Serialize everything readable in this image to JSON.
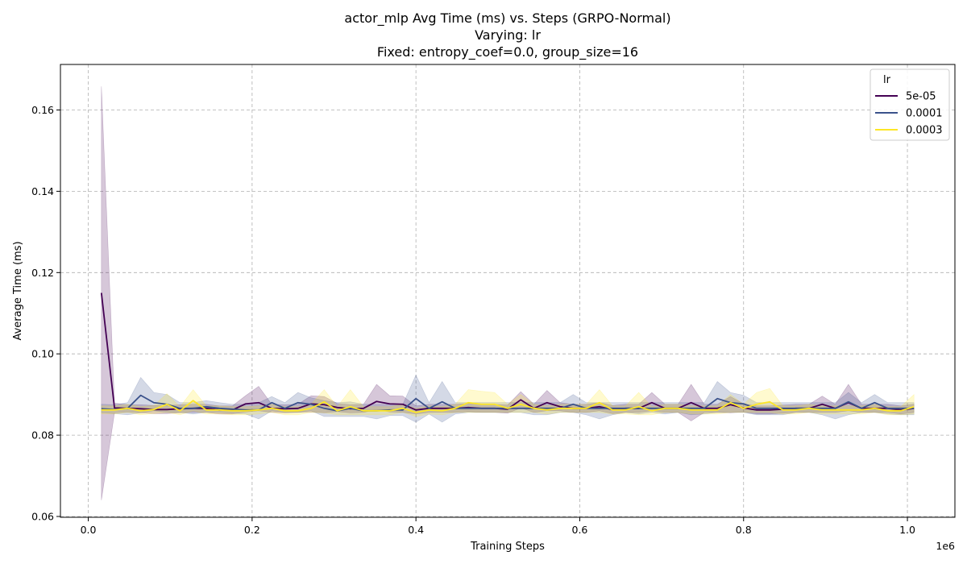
{
  "chart_data": {
    "type": "line",
    "title_lines": [
      "actor_mlp Avg Time (ms) vs. Steps (GRPO-Normal)",
      "Varying: lr",
      "Fixed: entropy_coef=0.0, group_size=16"
    ],
    "xlabel": "Training Steps",
    "ylabel": "Average Time (ms)",
    "x_multiplier_label": "1e6",
    "xlim": [
      -0.034,
      1.058
    ],
    "ylim": [
      0.0598,
      0.1712
    ],
    "xticks": [
      {
        "v": 0.0,
        "label": "0.0"
      },
      {
        "v": 0.2,
        "label": "0.2"
      },
      {
        "v": 0.4,
        "label": "0.4"
      },
      {
        "v": 0.6,
        "label": "0.6"
      },
      {
        "v": 0.8,
        "label": "0.8"
      },
      {
        "v": 1.0,
        "label": "1.0"
      }
    ],
    "yticks": [
      {
        "v": 0.06,
        "label": "0.06"
      },
      {
        "v": 0.08,
        "label": "0.08"
      },
      {
        "v": 0.1,
        "label": "0.10"
      },
      {
        "v": 0.12,
        "label": "0.12"
      },
      {
        "v": 0.14,
        "label": "0.14"
      },
      {
        "v": 0.16,
        "label": "0.16"
      }
    ],
    "grid": true,
    "legend": {
      "title": "lr",
      "placement": "top-right"
    },
    "series": [
      {
        "name": "5e-05",
        "color": "#440154",
        "x": [
          0.016,
          0.032,
          0.048,
          0.064,
          0.08,
          0.096,
          0.112,
          0.128,
          0.144,
          0.16,
          0.176,
          0.192,
          0.208,
          0.224,
          0.24,
          0.256,
          0.272,
          0.288,
          0.304,
          0.32,
          0.336,
          0.352,
          0.368,
          0.384,
          0.4,
          0.416,
          0.432,
          0.448,
          0.464,
          0.48,
          0.496,
          0.512,
          0.528,
          0.544,
          0.56,
          0.576,
          0.592,
          0.608,
          0.624,
          0.64,
          0.656,
          0.672,
          0.688,
          0.704,
          0.72,
          0.736,
          0.752,
          0.768,
          0.784,
          0.8,
          0.816,
          0.832,
          0.848,
          0.864,
          0.88,
          0.896,
          0.912,
          0.928,
          0.944,
          0.96,
          0.976,
          0.992,
          1.008
        ],
        "y": [
          0.115,
          0.0867,
          0.0866,
          0.0865,
          0.0863,
          0.0863,
          0.0865,
          0.0866,
          0.0866,
          0.0862,
          0.0862,
          0.0877,
          0.088,
          0.0866,
          0.0865,
          0.0866,
          0.0877,
          0.0875,
          0.0868,
          0.0865,
          0.0866,
          0.0883,
          0.0877,
          0.0876,
          0.0862,
          0.0866,
          0.0866,
          0.0866,
          0.0868,
          0.0866,
          0.0866,
          0.0864,
          0.0887,
          0.0866,
          0.088,
          0.087,
          0.0866,
          0.0866,
          0.087,
          0.0863,
          0.0866,
          0.0866,
          0.088,
          0.0866,
          0.0866,
          0.088,
          0.0866,
          0.0866,
          0.0875,
          0.0867,
          0.0862,
          0.0862,
          0.0864,
          0.0866,
          0.0866,
          0.0876,
          0.0866,
          0.088,
          0.0866,
          0.0866,
          0.0866,
          0.0862,
          0.0866
        ],
        "lower": [
          0.064,
          0.0855,
          0.0857,
          0.0855,
          0.0853,
          0.0853,
          0.0855,
          0.0856,
          0.0856,
          0.0852,
          0.0852,
          0.0857,
          0.086,
          0.0856,
          0.0855,
          0.0856,
          0.0857,
          0.0855,
          0.0858,
          0.0855,
          0.0856,
          0.0863,
          0.0857,
          0.0856,
          0.0852,
          0.0856,
          0.0856,
          0.0856,
          0.0858,
          0.0856,
          0.0856,
          0.0854,
          0.0867,
          0.0856,
          0.086,
          0.086,
          0.0856,
          0.0856,
          0.086,
          0.0853,
          0.0856,
          0.0856,
          0.086,
          0.0856,
          0.0856,
          0.0835,
          0.0856,
          0.0856,
          0.0855,
          0.0857,
          0.0852,
          0.0852,
          0.0854,
          0.0856,
          0.0856,
          0.0856,
          0.0856,
          0.086,
          0.0856,
          0.0856,
          0.0856,
          0.0852,
          0.0856
        ],
        "upper": [
          0.1658,
          0.0879,
          0.0875,
          0.0875,
          0.0873,
          0.0873,
          0.0875,
          0.0876,
          0.0876,
          0.0872,
          0.0872,
          0.0897,
          0.092,
          0.0876,
          0.0875,
          0.0876,
          0.0897,
          0.0895,
          0.0878,
          0.0875,
          0.0876,
          0.0925,
          0.0897,
          0.0896,
          0.0872,
          0.0876,
          0.0876,
          0.0876,
          0.0878,
          0.0876,
          0.0876,
          0.0874,
          0.0907,
          0.0876,
          0.091,
          0.088,
          0.0876,
          0.0876,
          0.088,
          0.0873,
          0.0876,
          0.0876,
          0.0905,
          0.0876,
          0.0876,
          0.0925,
          0.0876,
          0.0876,
          0.0895,
          0.0877,
          0.0872,
          0.0872,
          0.0874,
          0.0876,
          0.0876,
          0.0896,
          0.0876,
          0.0925,
          0.0876,
          0.0876,
          0.0876,
          0.0872,
          0.0876
        ]
      },
      {
        "name": "0.0001",
        "color": "#3b528b",
        "x": [
          0.016,
          0.032,
          0.048,
          0.064,
          0.08,
          0.096,
          0.112,
          0.128,
          0.144,
          0.16,
          0.176,
          0.192,
          0.208,
          0.224,
          0.24,
          0.256,
          0.272,
          0.288,
          0.304,
          0.32,
          0.336,
          0.352,
          0.368,
          0.384,
          0.4,
          0.416,
          0.432,
          0.448,
          0.464,
          0.48,
          0.496,
          0.512,
          0.528,
          0.544,
          0.56,
          0.576,
          0.592,
          0.608,
          0.624,
          0.64,
          0.656,
          0.672,
          0.688,
          0.704,
          0.72,
          0.736,
          0.752,
          0.768,
          0.784,
          0.8,
          0.816,
          0.832,
          0.848,
          0.864,
          0.88,
          0.896,
          0.912,
          0.928,
          0.944,
          0.96,
          0.976,
          0.992,
          1.008
        ],
        "y": [
          0.0865,
          0.0863,
          0.0866,
          0.0898,
          0.088,
          0.0876,
          0.0866,
          0.0866,
          0.087,
          0.0866,
          0.0864,
          0.0862,
          0.0862,
          0.088,
          0.0866,
          0.088,
          0.0876,
          0.0866,
          0.086,
          0.0866,
          0.086,
          0.086,
          0.0862,
          0.0862,
          0.089,
          0.0866,
          0.0882,
          0.0866,
          0.0866,
          0.0866,
          0.0866,
          0.0866,
          0.0866,
          0.0866,
          0.0866,
          0.0866,
          0.0876,
          0.0866,
          0.0866,
          0.0866,
          0.0866,
          0.0866,
          0.0866,
          0.0866,
          0.0866,
          0.0866,
          0.0866,
          0.089,
          0.088,
          0.0877,
          0.0866,
          0.0866,
          0.0866,
          0.0866,
          0.0866,
          0.0866,
          0.0866,
          0.0882,
          0.0866,
          0.088,
          0.0866,
          0.0866,
          0.0866
        ],
        "lower": [
          0.0855,
          0.0853,
          0.085,
          0.0855,
          0.086,
          0.0856,
          0.0856,
          0.0852,
          0.0856,
          0.0856,
          0.0854,
          0.0852,
          0.084,
          0.086,
          0.0856,
          0.0856,
          0.086,
          0.0846,
          0.0846,
          0.0846,
          0.0846,
          0.084,
          0.0848,
          0.0848,
          0.0832,
          0.0852,
          0.0832,
          0.0852,
          0.0856,
          0.0856,
          0.0856,
          0.0856,
          0.0856,
          0.085,
          0.085,
          0.0856,
          0.0856,
          0.085,
          0.084,
          0.085,
          0.0856,
          0.0852,
          0.0856,
          0.0852,
          0.0856,
          0.085,
          0.0852,
          0.0856,
          0.0856,
          0.0856,
          0.085,
          0.085,
          0.085,
          0.0856,
          0.0856,
          0.085,
          0.084,
          0.085,
          0.0856,
          0.0856,
          0.0852,
          0.085,
          0.085
        ],
        "upper": [
          0.0876,
          0.0875,
          0.088,
          0.0942,
          0.0905,
          0.09,
          0.088,
          0.088,
          0.0885,
          0.088,
          0.0876,
          0.0876,
          0.088,
          0.0895,
          0.088,
          0.0905,
          0.0892,
          0.0885,
          0.088,
          0.0882,
          0.0876,
          0.0876,
          0.0876,
          0.0876,
          0.0948,
          0.088,
          0.0932,
          0.088,
          0.088,
          0.088,
          0.088,
          0.088,
          0.088,
          0.088,
          0.088,
          0.088,
          0.09,
          0.088,
          0.088,
          0.088,
          0.088,
          0.088,
          0.088,
          0.088,
          0.088,
          0.088,
          0.088,
          0.0932,
          0.0905,
          0.0898,
          0.088,
          0.088,
          0.088,
          0.088,
          0.088,
          0.088,
          0.088,
          0.0905,
          0.088,
          0.09,
          0.088,
          0.088,
          0.088
        ]
      },
      {
        "name": "0.0003",
        "color": "#fde725",
        "x": [
          0.016,
          0.032,
          0.048,
          0.064,
          0.08,
          0.096,
          0.112,
          0.128,
          0.144,
          0.16,
          0.176,
          0.192,
          0.208,
          0.224,
          0.24,
          0.256,
          0.272,
          0.288,
          0.304,
          0.32,
          0.336,
          0.352,
          0.368,
          0.384,
          0.4,
          0.416,
          0.432,
          0.448,
          0.464,
          0.48,
          0.496,
          0.512,
          0.528,
          0.544,
          0.56,
          0.576,
          0.592,
          0.608,
          0.624,
          0.64,
          0.656,
          0.672,
          0.688,
          0.704,
          0.72,
          0.736,
          0.752,
          0.768,
          0.784,
          0.8,
          0.816,
          0.832,
          0.848,
          0.864,
          0.88,
          0.896,
          0.912,
          0.928,
          0.944,
          0.96,
          0.976,
          0.992,
          1.008
        ],
        "y": [
          0.0862,
          0.0862,
          0.0866,
          0.086,
          0.0863,
          0.0876,
          0.086,
          0.0885,
          0.0862,
          0.0862,
          0.086,
          0.086,
          0.0862,
          0.0866,
          0.086,
          0.086,
          0.0866,
          0.0882,
          0.086,
          0.087,
          0.086,
          0.086,
          0.086,
          0.0866,
          0.0856,
          0.0862,
          0.086,
          0.0866,
          0.088,
          0.0876,
          0.0876,
          0.0866,
          0.0876,
          0.0866,
          0.0862,
          0.0866,
          0.0866,
          0.0866,
          0.088,
          0.0862,
          0.0862,
          0.087,
          0.086,
          0.0866,
          0.0866,
          0.0862,
          0.0862,
          0.0862,
          0.088,
          0.0866,
          0.0876,
          0.0882,
          0.0862,
          0.0862,
          0.0866,
          0.0862,
          0.0862,
          0.0862,
          0.0862,
          0.0866,
          0.086,
          0.086,
          0.087
        ],
        "lower": [
          0.0852,
          0.0852,
          0.0856,
          0.085,
          0.0853,
          0.0856,
          0.085,
          0.086,
          0.0852,
          0.0852,
          0.085,
          0.085,
          0.0852,
          0.0856,
          0.085,
          0.085,
          0.0856,
          0.0855,
          0.085,
          0.085,
          0.085,
          0.085,
          0.085,
          0.0856,
          0.0846,
          0.0852,
          0.085,
          0.0856,
          0.0856,
          0.0856,
          0.0856,
          0.0856,
          0.0856,
          0.0856,
          0.0852,
          0.0856,
          0.0856,
          0.0856,
          0.0856,
          0.0852,
          0.0852,
          0.085,
          0.085,
          0.0856,
          0.0856,
          0.0852,
          0.0852,
          0.0852,
          0.0856,
          0.0856,
          0.0856,
          0.0856,
          0.0852,
          0.0852,
          0.0856,
          0.0852,
          0.0852,
          0.0852,
          0.0852,
          0.0856,
          0.085,
          0.085,
          0.0852
        ],
        "upper": [
          0.0872,
          0.0872,
          0.0876,
          0.087,
          0.0873,
          0.0902,
          0.087,
          0.0912,
          0.0872,
          0.0872,
          0.087,
          0.087,
          0.0872,
          0.0876,
          0.087,
          0.087,
          0.0876,
          0.0912,
          0.087,
          0.0912,
          0.087,
          0.087,
          0.087,
          0.0876,
          0.0866,
          0.0872,
          0.087,
          0.0876,
          0.0912,
          0.0908,
          0.0905,
          0.0876,
          0.09,
          0.0876,
          0.0872,
          0.0876,
          0.0876,
          0.0876,
          0.0912,
          0.0872,
          0.0872,
          0.0905,
          0.087,
          0.0876,
          0.0876,
          0.0872,
          0.0872,
          0.0872,
          0.09,
          0.0876,
          0.0905,
          0.0915,
          0.0872,
          0.0872,
          0.0876,
          0.0872,
          0.0872,
          0.0872,
          0.0872,
          0.0876,
          0.087,
          0.087,
          0.09
        ]
      }
    ]
  }
}
